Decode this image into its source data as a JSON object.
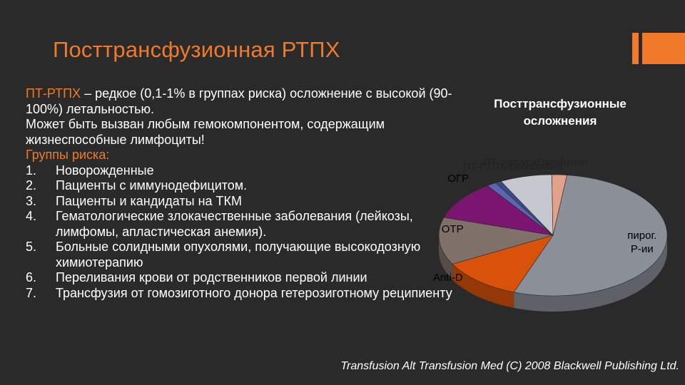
{
  "slide": {
    "title": "Посттрансфузионная РТПХ",
    "source": "Transfusion Alt Transfusion Med (C) 2008 Blackwell Publishing Ltd."
  },
  "body": {
    "intro_term": "ПТ-РТПХ",
    "intro_rest": " – редкое (0,1-1% в группах риска) осложнение с высокой (90-100%) летальностью.",
    "line2": "Может быть вызван любым гемокомпонентом, содержащим жизнеспособные лимфоциты!",
    "groups_heading": "Группы риска:",
    "groups": [
      "Новорожденные",
      "Пациенты с иммунодефицитом.",
      "Пациенты и кандидаты на ТКМ",
      "Гематологические злокачественные заболевания (лейкозы, лимфомы, апластическая анемия).",
      "Больные солидными опухолями, получающие высокодозную химиотерапию",
      "Переливания крови от родственников первой линии",
      "Трансфузия от гомозиготного донора гетерозиготному реципиенту"
    ]
  },
  "chart_data": {
    "type": "pie",
    "title": "Посттрансфузионные осложнения",
    "slices": [
      {
        "label": "пирог. Р-ии",
        "value": 51,
        "color": "#8a8f98"
      },
      {
        "label": "Anti-D",
        "value": 11,
        "color": "#d9520b"
      },
      {
        "label": "ОТР",
        "value": 12,
        "color": "#7f706a"
      },
      {
        "label": "ОГР",
        "value": 10,
        "color": "#7a1570"
      },
      {
        "label": "ПТ-РТПХ",
        "value": 1.3,
        "color": "#5a66b0"
      },
      {
        "label": "ПТ-пурпура",
        "value": 0.8,
        "color": "#3d4a8a"
      },
      {
        "label": "Unclassified",
        "value": 7,
        "color": "#c5c9cf"
      },
      {
        "label": "Transfusion",
        "value": 2,
        "color": "#e3a08a"
      }
    ],
    "colors": {
      "side_shade": "#5a5e66"
    }
  }
}
